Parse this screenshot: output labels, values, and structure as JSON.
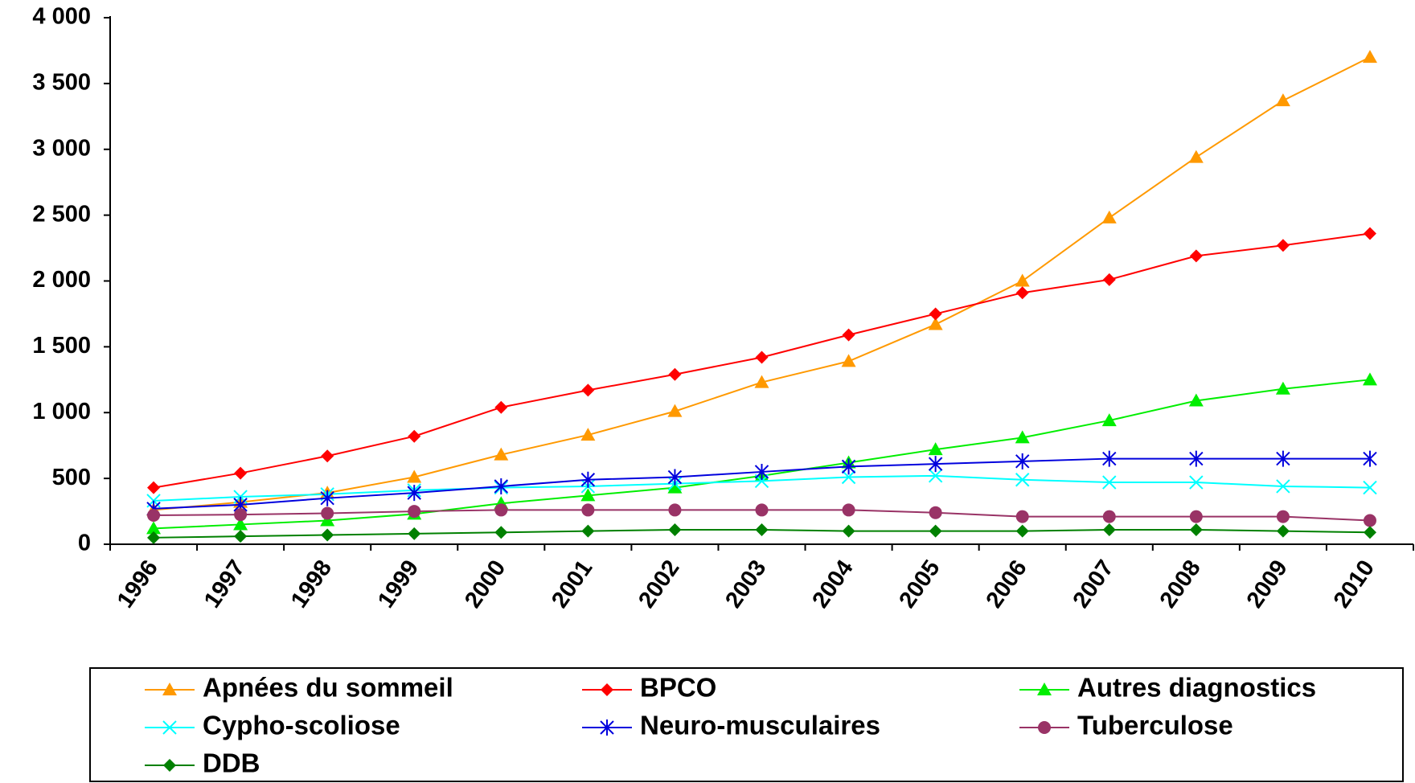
{
  "chart_data": {
    "type": "line",
    "categories": [
      "1996",
      "1997",
      "1998",
      "1999",
      "2000",
      "2001",
      "2002",
      "2003",
      "2004",
      "2005",
      "2006",
      "2007",
      "2008",
      "2009",
      "2010"
    ],
    "ylim": [
      0,
      4000
    ],
    "yticks": [
      0,
      500,
      {
        "value": 1000,
        "label": "1 000"
      },
      {
        "value": 1500,
        "label": "1 500"
      },
      {
        "value": 2000,
        "label": "2 000"
      },
      {
        "value": 2500,
        "label": "2 500"
      },
      {
        "value": 3000,
        "label": "3 000"
      },
      {
        "value": 3500,
        "label": "3 500"
      },
      {
        "value": 4000,
        "label": "4 000"
      }
    ],
    "grid": false,
    "legend": "bottom",
    "series": [
      {
        "name": "Apnées du sommeil",
        "color": "#ff9900",
        "marker": "triangle",
        "values": [
          260,
          320,
          390,
          510,
          680,
          830,
          1010,
          1230,
          1390,
          1670,
          2000,
          2480,
          2940,
          3370,
          3700
        ]
      },
      {
        "name": "BPCO",
        "color": "#ff0000",
        "marker": "diamond",
        "values": [
          430,
          540,
          670,
          820,
          1040,
          1170,
          1290,
          1420,
          1590,
          1750,
          1910,
          2010,
          2190,
          2270,
          2360
        ]
      },
      {
        "name": "Autres diagnostics",
        "color": "#00ee00",
        "marker": "triangle",
        "values": [
          120,
          150,
          180,
          230,
          310,
          370,
          430,
          520,
          620,
          720,
          810,
          940,
          1090,
          1180,
          1250
        ]
      },
      {
        "name": "Cypho-scoliose",
        "color": "#00ffff",
        "marker": "x",
        "values": [
          330,
          360,
          380,
          410,
          430,
          440,
          460,
          480,
          510,
          520,
          490,
          470,
          470,
          440,
          430
        ]
      },
      {
        "name": "Neuro-musculaires",
        "color": "#0000dd",
        "marker": "star",
        "values": [
          270,
          300,
          350,
          390,
          440,
          490,
          510,
          550,
          590,
          610,
          630,
          650,
          650,
          650,
          650
        ]
      },
      {
        "name": "Tuberculose",
        "color": "#993366",
        "marker": "circle",
        "values": [
          220,
          225,
          235,
          250,
          260,
          260,
          260,
          260,
          260,
          240,
          210,
          210,
          210,
          210,
          180
        ]
      },
      {
        "name": "DDB",
        "color": "#008000",
        "marker": "diamond",
        "values": [
          50,
          60,
          70,
          80,
          90,
          100,
          110,
          110,
          100,
          100,
          100,
          110,
          110,
          100,
          90
        ]
      }
    ]
  }
}
